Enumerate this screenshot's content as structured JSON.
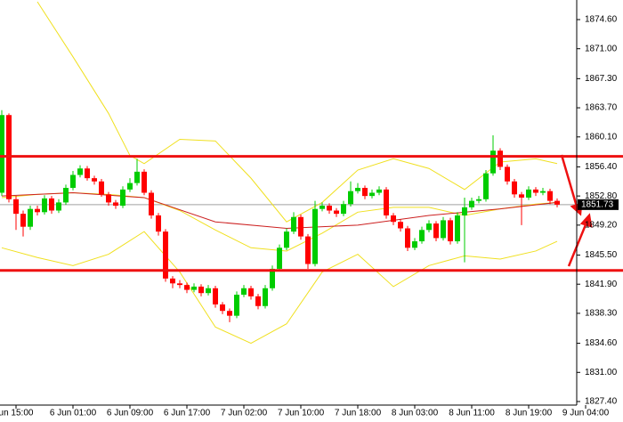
{
  "chart_data": {
    "type": "candlestick",
    "up_color": "#00cc00",
    "down_color": "#ff0000",
    "ylim": [
      1826.96,
      1877.02
    ],
    "yticks": [
      {
        "value": 1874.6,
        "label": "1874.60"
      },
      {
        "value": 1871.0,
        "label": "1871.00"
      },
      {
        "value": 1867.3,
        "label": "1867.30"
      },
      {
        "value": 1863.7,
        "label": "1863.70"
      },
      {
        "value": 1860.1,
        "label": "1860.10"
      },
      {
        "value": 1856.4,
        "label": "1856.40"
      },
      {
        "value": 1852.8,
        "label": "1852.80"
      },
      {
        "value": 1849.2,
        "label": "1849.20"
      },
      {
        "value": 1845.5,
        "label": "1845.50"
      },
      {
        "value": 1841.9,
        "label": "1841.90"
      },
      {
        "value": 1838.3,
        "label": "1838.30"
      },
      {
        "value": 1834.6,
        "label": "1834.60"
      },
      {
        "value": 1831.0,
        "label": "1831.00"
      },
      {
        "value": 1827.4,
        "label": "1827.40"
      }
    ],
    "xticks": [
      {
        "value": 2,
        "label": "un 15:00"
      },
      {
        "value": 10,
        "label": "6 Jun 01:00"
      },
      {
        "value": 18,
        "label": "6 Jun 09:00"
      },
      {
        "value": 26,
        "label": "6 Jun 17:00"
      },
      {
        "value": 34,
        "label": "7 Jun 02:00"
      },
      {
        "value": 42,
        "label": "7 Jun 10:00"
      },
      {
        "value": 50,
        "label": "7 Jun 18:00"
      },
      {
        "value": 58,
        "label": "8 Jun 03:00"
      },
      {
        "value": 66,
        "label": "8 Jun 11:00"
      },
      {
        "value": 74,
        "label": "8 Jun 19:00"
      },
      {
        "value": 82,
        "label": "9 Jun 04:00"
      }
    ],
    "open": [
      1853.2,
      1862.8,
      1852.4,
      1850.6,
      1849.0,
      1851.2,
      1850.8,
      1852.5,
      1851.0,
      1852.0,
      1853.8,
      1855.4,
      1856.2,
      1855.0,
      1854.6,
      1853.0,
      1852.0,
      1851.6,
      1853.6,
      1854.4,
      1855.8,
      1853.2,
      1850.4,
      1848.4,
      1842.6,
      1842.0,
      1841.8,
      1841.2,
      1841.6,
      1840.8,
      1841.4,
      1839.4,
      1838.6,
      1838.0,
      1840.6,
      1841.4,
      1840.4,
      1839.2,
      1841.4,
      1843.8,
      1846.4,
      1848.4,
      1850.2,
      1847.8,
      1844.4,
      1851.2,
      1851.6,
      1851.0,
      1850.6,
      1851.8,
      1853.4,
      1853.8,
      1852.8,
      1853.2,
      1853.6,
      1850.4,
      1849.6,
      1848.8,
      1846.4,
      1847.2,
      1848.6,
      1849.4,
      1847.6,
      1849.8,
      1847.2,
      1850.4,
      1851.4,
      1852.2,
      1852.4,
      1855.6,
      1858.4,
      1856.4,
      1854.6,
      1853.0,
      1852.6,
      1853.6,
      1853.2,
      1853.4,
      1852.2
    ],
    "high": [
      1863.4,
      1863.0,
      1852.8,
      1851.0,
      1851.6,
      1851.6,
      1852.9,
      1852.8,
      1852.4,
      1854.2,
      1855.9,
      1856.6,
      1856.5,
      1855.3,
      1854.9,
      1853.3,
      1852.3,
      1854.0,
      1855.0,
      1857.4,
      1856.1,
      1853.5,
      1850.7,
      1848.7,
      1842.9,
      1842.4,
      1842.1,
      1842.0,
      1841.9,
      1841.8,
      1841.7,
      1839.7,
      1838.9,
      1841.0,
      1841.8,
      1841.7,
      1840.7,
      1841.8,
      1844.2,
      1846.8,
      1848.8,
      1850.8,
      1850.5,
      1848.1,
      1852.2,
      1852.0,
      1851.9,
      1851.3,
      1852.2,
      1854.6,
      1854.4,
      1854.1,
      1853.6,
      1854.0,
      1853.9,
      1850.7,
      1849.9,
      1849.1,
      1847.6,
      1849.0,
      1849.8,
      1849.7,
      1850.2,
      1850.1,
      1850.8,
      1852.6,
      1852.6,
      1852.8,
      1856.0,
      1860.3,
      1858.7,
      1856.7,
      1854.9,
      1853.3,
      1854.0,
      1853.9,
      1853.8,
      1853.7,
      1852.5
    ],
    "low": [
      1852.8,
      1852.0,
      1848.6,
      1847.8,
      1848.6,
      1850.4,
      1850.5,
      1850.6,
      1850.7,
      1851.7,
      1853.5,
      1855.1,
      1854.7,
      1854.2,
      1852.7,
      1851.6,
      1851.2,
      1851.3,
      1853.3,
      1854.1,
      1852.9,
      1850.0,
      1847.9,
      1842.2,
      1841.4,
      1841.4,
      1840.8,
      1840.9,
      1840.4,
      1840.5,
      1839.0,
      1838.2,
      1837.2,
      1837.7,
      1840.3,
      1840.0,
      1838.8,
      1838.9,
      1841.1,
      1843.5,
      1846.1,
      1848.1,
      1847.4,
      1843.8,
      1844.1,
      1850.9,
      1850.6,
      1850.2,
      1850.3,
      1851.5,
      1853.1,
      1852.4,
      1852.5,
      1852.9,
      1850.0,
      1849.2,
      1848.4,
      1846.0,
      1846.1,
      1846.9,
      1848.3,
      1847.2,
      1847.3,
      1846.8,
      1846.9,
      1844.6,
      1851.1,
      1851.9,
      1852.1,
      1855.3,
      1856.0,
      1854.2,
      1852.6,
      1849.2,
      1852.3,
      1852.8,
      1852.9,
      1851.8,
      1851.4
    ],
    "close": [
      1862.8,
      1852.4,
      1850.6,
      1849.0,
      1851.2,
      1850.8,
      1852.5,
      1851.0,
      1852.0,
      1853.8,
      1855.4,
      1856.2,
      1855.0,
      1854.6,
      1853.0,
      1852.0,
      1851.6,
      1853.6,
      1854.4,
      1855.8,
      1853.2,
      1850.4,
      1848.4,
      1842.6,
      1842.0,
      1841.8,
      1841.2,
      1841.6,
      1840.8,
      1841.4,
      1839.4,
      1838.6,
      1838.0,
      1840.6,
      1841.4,
      1840.4,
      1839.2,
      1841.4,
      1843.8,
      1846.4,
      1848.4,
      1850.2,
      1847.8,
      1844.4,
      1851.2,
      1851.6,
      1851.0,
      1850.6,
      1851.8,
      1853.4,
      1853.8,
      1852.8,
      1853.2,
      1853.6,
      1850.4,
      1849.6,
      1848.8,
      1846.4,
      1847.2,
      1848.6,
      1849.4,
      1847.6,
      1849.8,
      1847.2,
      1850.4,
      1851.4,
      1852.2,
      1852.4,
      1855.6,
      1858.4,
      1856.4,
      1854.6,
      1853.0,
      1852.6,
      1853.6,
      1853.2,
      1853.4,
      1852.2,
      1851.73
    ],
    "lines": [
      {
        "color": "#f0e020",
        "x": [
          5,
          10,
          15,
          18,
          20,
          25,
          30,
          35,
          40,
          45,
          50,
          55,
          60,
          65,
          70,
          75,
          78
        ],
        "values": [
          1876.8,
          1870.0,
          1863.0,
          1857.8,
          1856.8,
          1859.8,
          1859.6,
          1855.0,
          1849.6,
          1852.0,
          1856.0,
          1857.4,
          1856.2,
          1853.6,
          1857.0,
          1857.4,
          1856.8
        ]
      },
      {
        "color": "#f0e020",
        "x": [
          0,
          5,
          10,
          15,
          20,
          25,
          30,
          35,
          40,
          45,
          50,
          55,
          60,
          65,
          70,
          75,
          78
        ],
        "values": [
          1852.6,
          1853.0,
          1853.2,
          1853.0,
          1852.6,
          1851.0,
          1848.6,
          1846.4,
          1846.0,
          1848.2,
          1850.8,
          1851.4,
          1851.4,
          1850.4,
          1851.2,
          1851.8,
          1852.0
        ]
      },
      {
        "color": "#f0e020",
        "x": [
          0,
          5,
          10,
          15,
          20,
          25,
          30,
          35,
          40,
          45,
          50,
          55,
          60,
          65,
          70,
          75,
          78
        ],
        "values": [
          1846.4,
          1845.2,
          1844.2,
          1845.6,
          1848.4,
          1843.4,
          1836.6,
          1834.6,
          1837.0,
          1843.4,
          1845.6,
          1841.6,
          1844.2,
          1845.4,
          1845.0,
          1846.0,
          1847.2
        ]
      },
      {
        "color": "#cc2020",
        "x": [
          0,
          10,
          20,
          30,
          40,
          50,
          60,
          70,
          78
        ],
        "values": [
          1852.8,
          1853.2,
          1852.6,
          1849.6,
          1848.8,
          1849.2,
          1850.4,
          1851.2,
          1852.0
        ]
      }
    ],
    "levels": [
      1857.7,
      1843.6
    ],
    "level_color": "#ee1111"
  }
}
